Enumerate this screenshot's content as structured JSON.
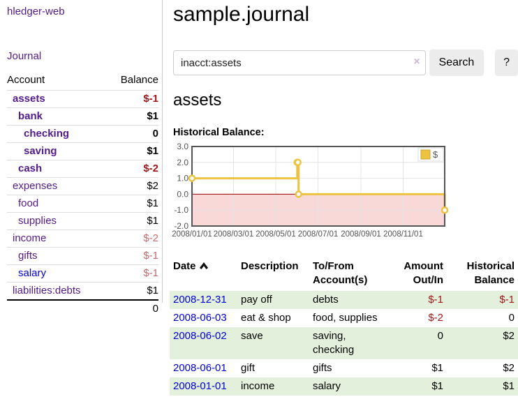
{
  "colors": {
    "link_purple": "#551a8b",
    "link_blue": "#0000dd",
    "neg_strong": "#a01818",
    "neg_soft": "#c46a6a",
    "row_stripe_green": "#e3f0dc",
    "accent_gold": "#edc240"
  },
  "sidebar": {
    "brand": "hledger-web",
    "nav_journal": "Journal",
    "accounts": {
      "header_account": "Account",
      "header_balance": "Balance",
      "rows": [
        {
          "name": "assets",
          "depth": 1,
          "bold": true,
          "link_color": "purple",
          "balance": "$-1",
          "balance_class": "v-neg"
        },
        {
          "name": "bank",
          "depth": 2,
          "bold": true,
          "link_color": "purple",
          "balance": "$1",
          "balance_class": "v-pos"
        },
        {
          "name": "checking",
          "depth": 3,
          "bold": true,
          "link_color": "purple",
          "balance": "0",
          "balance_class": "v-pos"
        },
        {
          "name": "saving",
          "depth": 3,
          "bold": true,
          "link_color": "purple",
          "balance": "$1",
          "balance_class": "v-pos"
        },
        {
          "name": "cash",
          "depth": 2,
          "bold": true,
          "link_color": "purple",
          "balance": "$-2",
          "balance_class": "v-neg"
        },
        {
          "name": "expenses",
          "depth": 1,
          "bold": false,
          "link_color": "purple",
          "balance": "$2",
          "balance_class": "v-pos"
        },
        {
          "name": "food",
          "depth": 2,
          "bold": false,
          "link_color": "purple",
          "balance": "$1",
          "balance_class": "v-pos"
        },
        {
          "name": "supplies",
          "depth": 2,
          "bold": false,
          "link_color": "purple",
          "balance": "$1",
          "balance_class": "v-pos"
        },
        {
          "name": "income",
          "depth": 1,
          "bold": false,
          "link_color": "purple",
          "balance": "$-2",
          "balance_class": "v-negsoft"
        },
        {
          "name": "gifts",
          "depth": 2,
          "bold": false,
          "link_color": "purple",
          "balance": "$-1",
          "balance_class": "v-negsoft"
        },
        {
          "name": "salary",
          "depth": 2,
          "bold": false,
          "link_color": "blue",
          "balance": "$-1",
          "balance_class": "v-negsoft"
        },
        {
          "name": "liabilities:debts",
          "depth": 1,
          "bold": false,
          "link_color": "purple",
          "balance": "$1",
          "balance_class": "v-pos"
        }
      ],
      "total": "0"
    }
  },
  "main": {
    "title": "sample.journal",
    "search": {
      "value": "inacct:assets",
      "clear_icon": "×",
      "button_label": "Search",
      "help_label": "?"
    },
    "account_heading": "assets",
    "chart_label": "Historical Balance:"
  },
  "chart_data": {
    "type": "line",
    "step": true,
    "title": "Historical Balance",
    "x_start": "2008-01-01",
    "x_end": "2008-12-31",
    "x_tick_labels": [
      "2008/01/01",
      "2008/03/01",
      "2008/05/01",
      "2008/07/01",
      "2008/09/01",
      "2008/11/01"
    ],
    "y_tick_labels": [
      "3.0",
      "2.0",
      "1.0",
      "0.0",
      "-1.0",
      "-2.0"
    ],
    "ylim": [
      -2,
      3
    ],
    "grid": true,
    "legend_position": "top-right",
    "series": [
      {
        "name": "$",
        "color": "#edc240",
        "points": [
          [
            "2008-01-01",
            1
          ],
          [
            "2008-06-01",
            2
          ],
          [
            "2008-06-02",
            2
          ],
          [
            "2008-06-03",
            0
          ],
          [
            "2008-12-31",
            -1
          ]
        ]
      }
    ],
    "colors": {
      "negative_fill": "#f9d8d8",
      "zero_line": "#990000",
      "border": "#545454",
      "grid": "#e4e4e4",
      "tick_text": "#545454",
      "marker_fill": "#ffffff",
      "legend_swatch_border": "#c9a62f"
    }
  },
  "register": {
    "headers": {
      "date": "Date",
      "description": "Description",
      "accounts": "To/From Account(s)",
      "amount": "Amount Out/In",
      "balance": "Historical Balance"
    },
    "rows": [
      {
        "date": "2008-12-31",
        "description": "pay off",
        "accounts": "debts",
        "amount": "$-1",
        "amount_negative": true,
        "balance": "$-1",
        "balance_negative": true
      },
      {
        "date": "2008-06-03",
        "description": "eat & shop",
        "accounts": "food, supplies",
        "amount": "$-2",
        "amount_negative": true,
        "balance": "0",
        "balance_negative": false
      },
      {
        "date": "2008-06-02",
        "description": "save",
        "accounts": "saving,\nchecking",
        "amount": "0",
        "amount_negative": false,
        "balance": "$2",
        "balance_negative": false
      },
      {
        "date": "2008-06-01",
        "description": "gift",
        "accounts": "gifts",
        "amount": "$1",
        "amount_negative": false,
        "balance": "$2",
        "balance_negative": false
      },
      {
        "date": "2008-01-01",
        "description": "income",
        "accounts": "salary",
        "amount": "$1",
        "amount_negative": false,
        "balance": "$1",
        "balance_negative": false
      }
    ]
  }
}
